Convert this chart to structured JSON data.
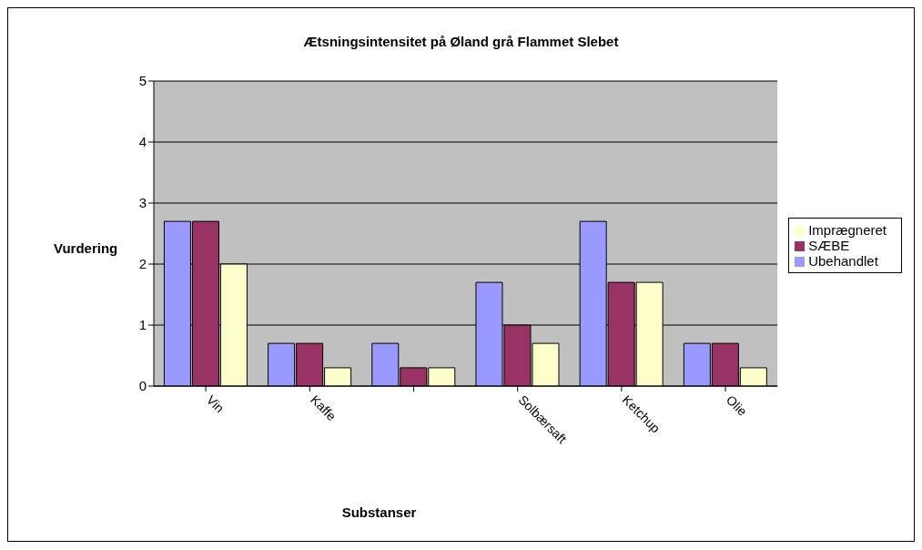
{
  "chart_data": {
    "type": "bar",
    "title": "Ætsningsintensitet på Øland grå Flammet Slebet",
    "xlabel": "Substanser",
    "ylabel": "Vurdering",
    "categories": [
      "Vin",
      "Kaffe",
      null,
      "Solbærsaft",
      "Ketchup",
      "Olie"
    ],
    "series": [
      {
        "name": "Ubehandlet",
        "color": "#9999ff",
        "values": [
          2.7,
          0.7,
          0.7,
          1.7,
          2.7,
          0.7
        ]
      },
      {
        "name": "SÆBE",
        "color": "#993366",
        "values": [
          2.7,
          0.7,
          0.3,
          1.0,
          1.7,
          0.7
        ]
      },
      {
        "name": "Imprægneret",
        "color": "#ffffcc",
        "values": [
          2.0,
          0.3,
          0.3,
          0.7,
          1.7,
          0.3
        ]
      }
    ],
    "ylim": [
      0,
      5
    ],
    "yticks": [
      0,
      1,
      2,
      3,
      4,
      5
    ],
    "grid": "y",
    "legend": "right"
  }
}
